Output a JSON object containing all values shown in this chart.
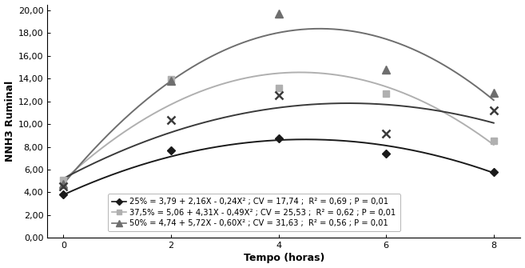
{
  "series": [
    {
      "label": "25% = 3,79 + 2,16X - 0,24X² ; CV = 17,74 ;  R² = 0,69 ; P = 0,01",
      "a": 3.79,
      "b": 2.16,
      "c": -0.24,
      "x_data": [
        0,
        2,
        4,
        6,
        8
      ],
      "y_data": [
        3.79,
        7.67,
        8.75,
        7.39,
        5.79
      ],
      "color": "#1a1a1a",
      "marker": "D",
      "markersize": 5,
      "linewidth": 1.4
    },
    {
      "label": "37,5% = 5,06 + 4,31X - 0,49X² ; CV = 25,53 ;  R² = 0,62 ; P = 0,01",
      "a": 5.06,
      "b": 4.31,
      "c": -0.49,
      "x_data": [
        0,
        2,
        4,
        6,
        8
      ],
      "y_data": [
        5.06,
        13.94,
        13.14,
        12.7,
        8.54
      ],
      "color": "#b0b0b0",
      "marker": "s",
      "markersize": 6,
      "linewidth": 1.4
    },
    {
      "label": "50% = 4,74 + 5,72X - 0,60X² ; CV = 31,63 ;  R² = 0,56 ; P = 0,01",
      "a": 4.74,
      "b": 5.72,
      "c": -0.6,
      "x_data": [
        0,
        2,
        4,
        6,
        8
      ],
      "y_data": [
        4.74,
        13.82,
        19.7,
        14.78,
        12.74
      ],
      "color": "#6e6e6e",
      "marker": "^",
      "markersize": 7,
      "linewidth": 1.4
    }
  ],
  "cross_series": {
    "x_data": [
      0,
      2,
      4,
      6,
      8
    ],
    "y_data": [
      4.5,
      10.35,
      12.52,
      9.18,
      11.18
    ],
    "color": "#3a3a3a",
    "marker": "x",
    "markersize": 7,
    "markeredgewidth": 1.8,
    "linewidth": 1.4
  },
  "xlabel": "Tempo (horas)",
  "ylabel": "NNH3 Ruminal",
  "xlim": [
    -0.3,
    8.5
  ],
  "ylim": [
    0.0,
    20.5
  ],
  "yticks": [
    0.0,
    2.0,
    4.0,
    6.0,
    8.0,
    10.0,
    12.0,
    14.0,
    16.0,
    18.0,
    20.0
  ],
  "xticks": [
    0,
    2,
    4,
    6,
    8
  ],
  "ytick_labels": [
    "0,00",
    "2,00",
    "4,00",
    "6,00",
    "8,00",
    "10,00",
    "12,00",
    "14,00",
    "16,00",
    "18,00",
    "20,00"
  ],
  "background_color": "#ffffff"
}
